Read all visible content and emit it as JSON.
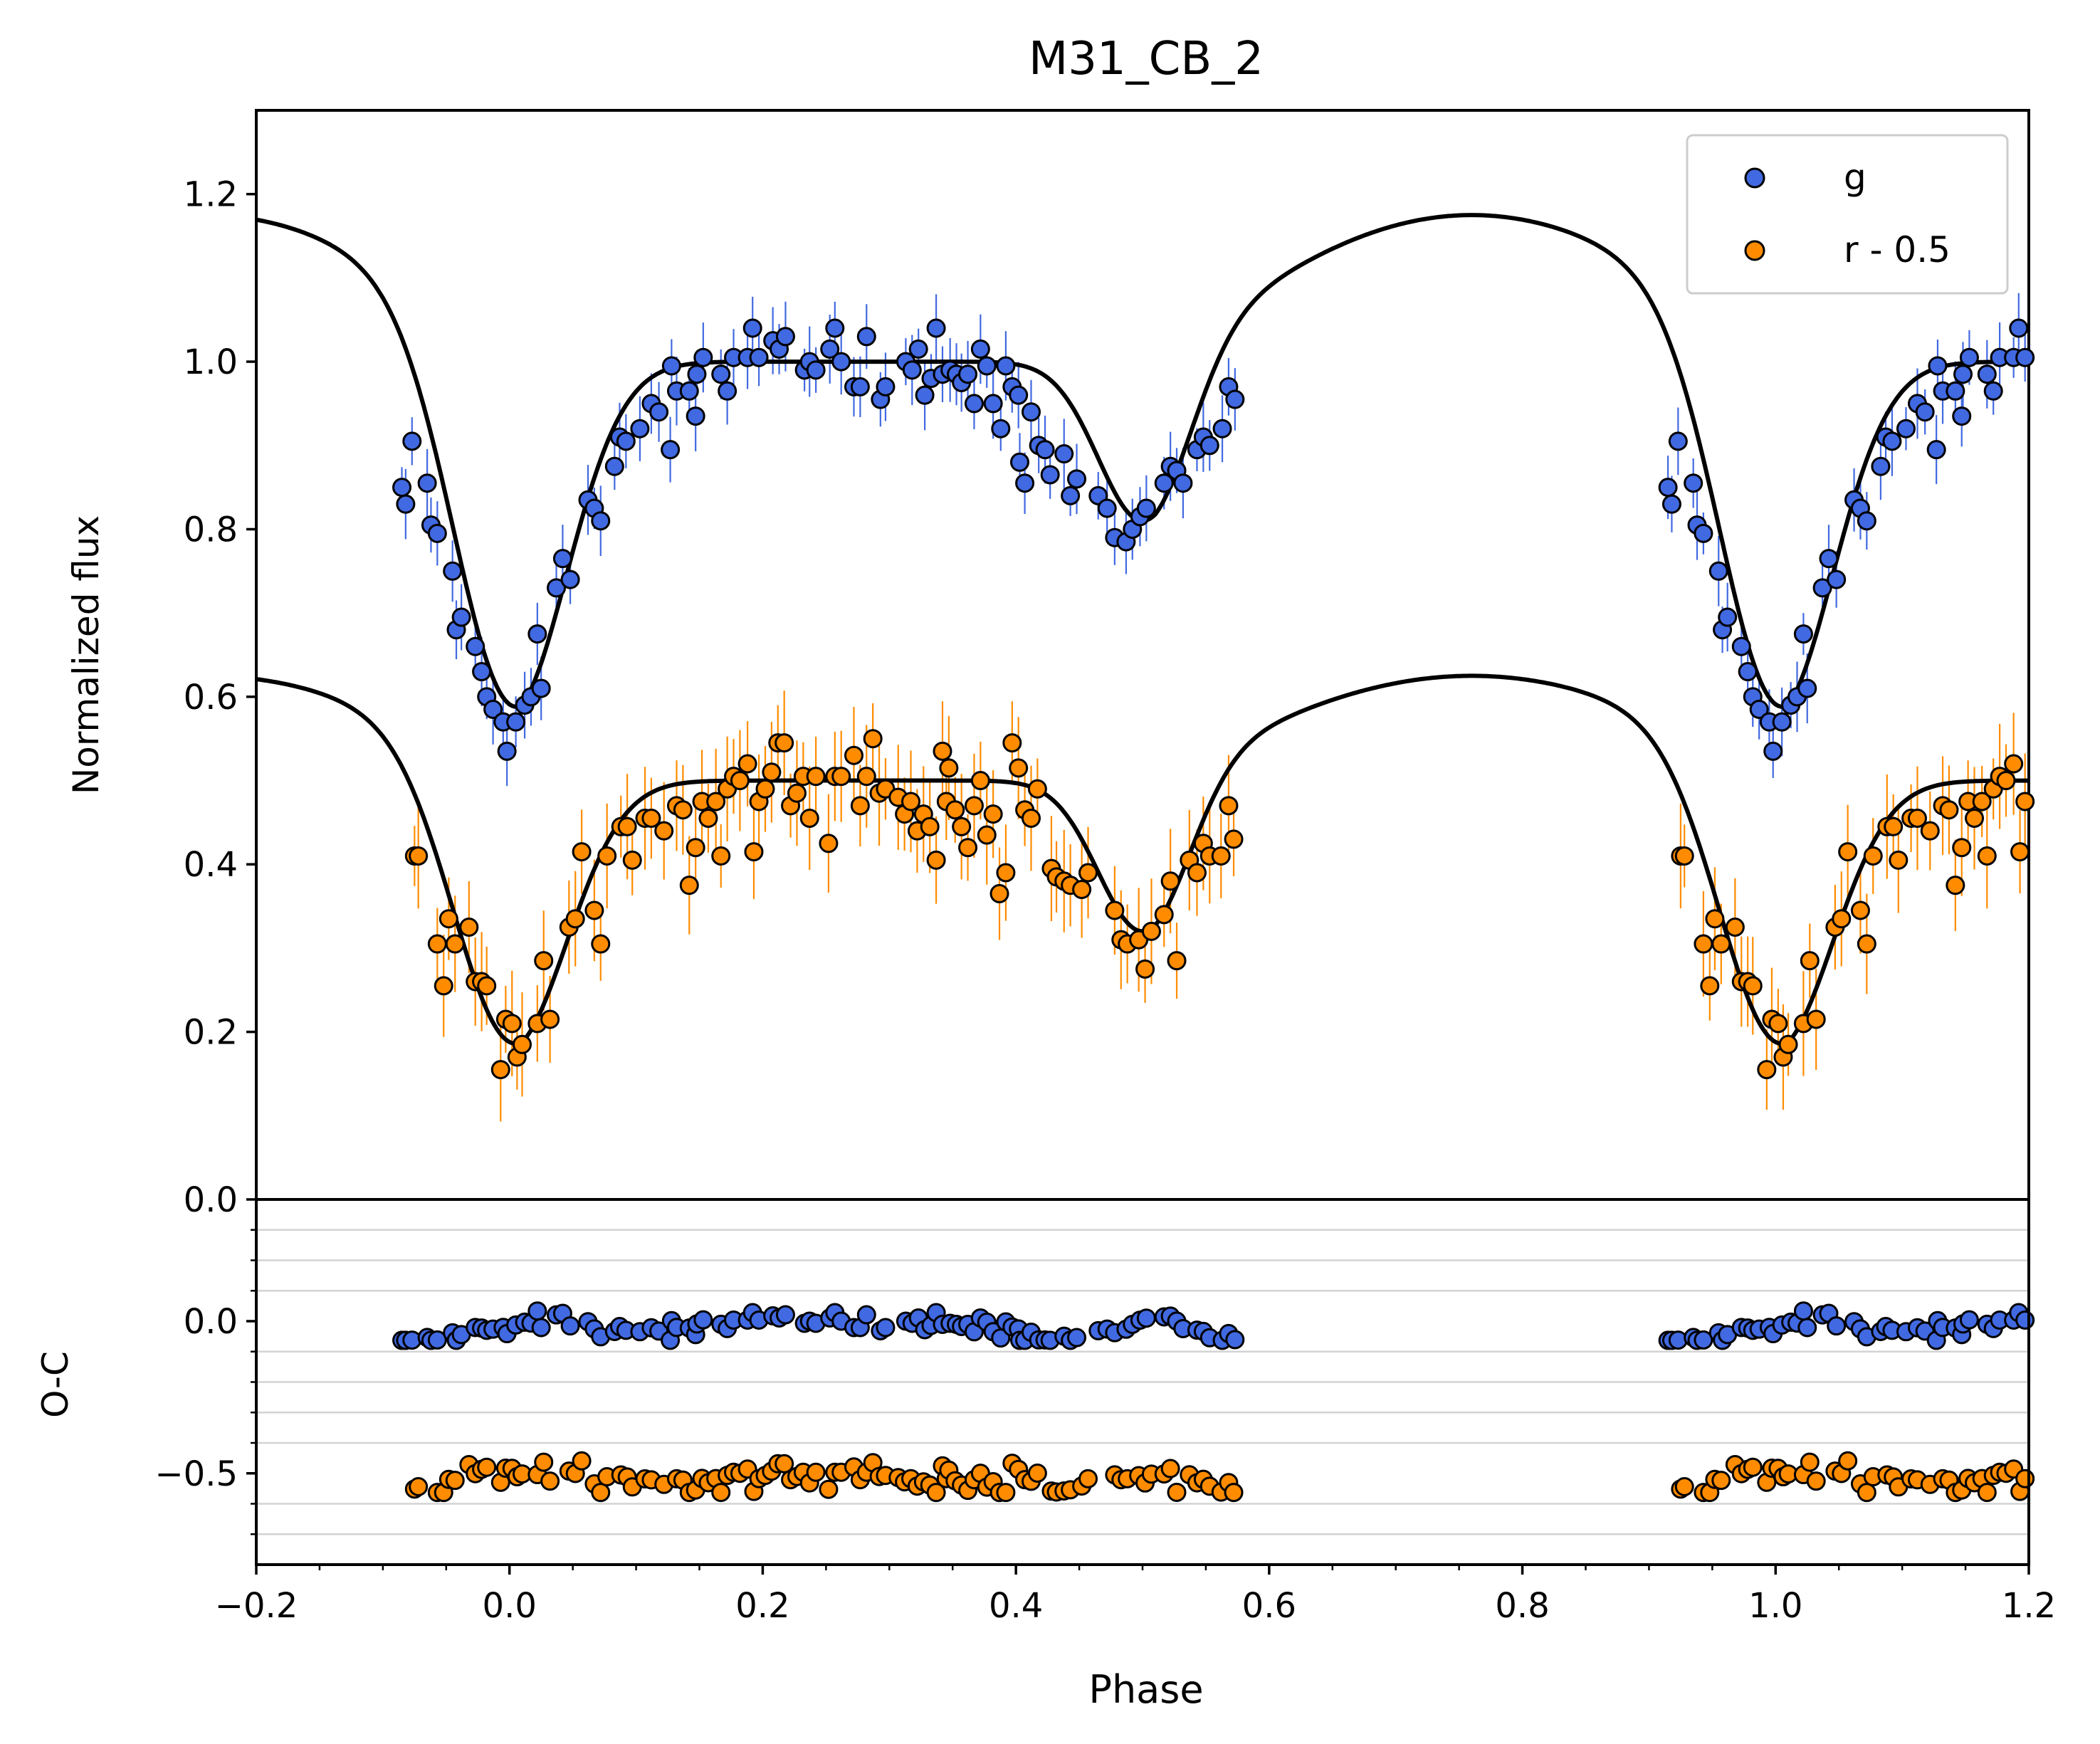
{
  "chart_data": {
    "type": "scatter",
    "title": "M31_CB_2",
    "colors": {
      "g": "#4169e1",
      "r": "#ff8c00",
      "model": "#000000",
      "edge": "#000000",
      "grid": "#d3d3d3"
    },
    "x_ticks": [
      "−0.2",
      "0.0",
      "0.2",
      "0.4",
      "0.6",
      "0.8",
      "1.0",
      "1.2"
    ],
    "x_tick_values": [
      -0.2,
      0.0,
      0.2,
      0.4,
      0.6,
      0.8,
      1.0,
      1.2
    ],
    "legend": {
      "position": "top-right",
      "entries": [
        "g",
        "r - 0.5"
      ]
    },
    "top_panel": {
      "ylabel": "Normalized flux",
      "xlim": [
        -0.2,
        1.2
      ],
      "ylim": [
        0.0,
        1.3
      ],
      "y_ticks": [
        "0.0",
        "0.2",
        "0.4",
        "0.6",
        "0.8",
        "1.0",
        "1.2"
      ],
      "y_tick_values": [
        0.0,
        0.2,
        0.4,
        0.6,
        0.8,
        1.0,
        1.2
      ],
      "series": [
        {
          "name": "g",
          "offset": 0.0,
          "err": 0.03,
          "model": {
            "base": 1.0,
            "primary_depth": 0.42,
            "secondary_depth": 0.19,
            "bump": 0.175
          },
          "points": [
            [
              -0.085,
              0.85
            ],
            [
              -0.082,
              0.83
            ],
            [
              -0.077,
              0.905
            ],
            [
              -0.065,
              0.855
            ],
            [
              -0.062,
              0.805
            ],
            [
              -0.057,
              0.795
            ],
            [
              -0.045,
              0.75
            ],
            [
              -0.042,
              0.68
            ],
            [
              -0.038,
              0.695
            ],
            [
              -0.027,
              0.66
            ],
            [
              -0.022,
              0.63
            ],
            [
              -0.018,
              0.6
            ],
            [
              -0.013,
              0.585
            ],
            [
              -0.005,
              0.57
            ],
            [
              -0.002,
              0.535
            ],
            [
              0.005,
              0.57
            ],
            [
              0.012,
              0.59
            ],
            [
              0.017,
              0.6
            ],
            [
              0.022,
              0.675
            ],
            [
              0.025,
              0.61
            ],
            [
              0.037,
              0.73
            ],
            [
              0.042,
              0.765
            ],
            [
              0.048,
              0.74
            ],
            [
              0.062,
              0.835
            ],
            [
              0.067,
              0.825
            ],
            [
              0.072,
              0.81
            ],
            [
              0.083,
              0.875
            ],
            [
              0.087,
              0.91
            ],
            [
              0.092,
              0.905
            ],
            [
              0.103,
              0.92
            ],
            [
              0.112,
              0.95
            ],
            [
              0.118,
              0.94
            ],
            [
              0.127,
              0.895
            ],
            [
              0.128,
              0.995
            ],
            [
              0.132,
              0.965
            ],
            [
              0.142,
              0.965
            ],
            [
              0.147,
              0.935
            ],
            [
              0.148,
              0.985
            ],
            [
              0.153,
              1.005
            ],
            [
              0.167,
              0.985
            ],
            [
              0.172,
              0.965
            ],
            [
              0.177,
              1.005
            ],
            [
              0.188,
              1.005
            ],
            [
              0.192,
              1.04
            ],
            [
              0.197,
              1.005
            ],
            [
              0.208,
              1.025
            ],
            [
              0.213,
              1.015
            ],
            [
              0.218,
              1.03
            ],
            [
              0.233,
              0.99
            ],
            [
              0.237,
              1.0
            ],
            [
              0.242,
              0.99
            ],
            [
              0.253,
              1.015
            ],
            [
              0.257,
              1.04
            ],
            [
              0.262,
              1.0
            ],
            [
              0.272,
              0.97
            ],
            [
              0.277,
              0.97
            ],
            [
              0.282,
              1.03
            ],
            [
              0.293,
              0.955
            ],
            [
              0.297,
              0.97
            ],
            [
              0.313,
              1.0
            ],
            [
              0.318,
              0.99
            ],
            [
              0.323,
              1.015
            ],
            [
              0.328,
              0.96
            ],
            [
              0.333,
              0.98
            ],
            [
              0.337,
              1.04
            ],
            [
              0.342,
              0.985
            ],
            [
              0.348,
              0.99
            ],
            [
              0.353,
              0.985
            ],
            [
              0.357,
              0.975
            ],
            [
              0.362,
              0.985
            ],
            [
              0.367,
              0.95
            ],
            [
              0.372,
              1.015
            ],
            [
              0.377,
              0.995
            ],
            [
              0.382,
              0.95
            ],
            [
              0.388,
              0.92
            ],
            [
              0.392,
              0.995
            ],
            [
              0.397,
              0.97
            ],
            [
              0.402,
              0.96
            ],
            [
              0.403,
              0.88
            ],
            [
              0.407,
              0.855
            ],
            [
              0.412,
              0.94
            ],
            [
              0.418,
              0.9
            ],
            [
              0.423,
              0.895
            ],
            [
              0.427,
              0.865
            ],
            [
              0.438,
              0.89
            ],
            [
              0.443,
              0.84
            ],
            [
              0.448,
              0.86
            ],
            [
              0.465,
              0.84
            ],
            [
              0.472,
              0.825
            ],
            [
              0.478,
              0.79
            ],
            [
              0.487,
              0.785
            ],
            [
              0.492,
              0.8
            ],
            [
              0.498,
              0.815
            ],
            [
              0.503,
              0.825
            ],
            [
              0.517,
              0.855
            ],
            [
              0.522,
              0.875
            ],
            [
              0.527,
              0.87
            ],
            [
              0.532,
              0.855
            ],
            [
              0.543,
              0.895
            ],
            [
              0.548,
              0.91
            ],
            [
              0.553,
              0.9
            ],
            [
              0.563,
              0.92
            ],
            [
              0.568,
              0.97
            ],
            [
              0.573,
              0.955
            ]
          ]
        },
        {
          "name": "r - 0.5",
          "offset": -0.5,
          "err": 0.045,
          "model": {
            "base": 0.5,
            "primary_depth": 0.32,
            "secondary_depth": 0.18,
            "bump": 0.125
          },
          "points": [
            [
              -0.075,
              0.41
            ],
            [
              -0.072,
              0.41
            ],
            [
              -0.057,
              0.305
            ],
            [
              -0.052,
              0.255
            ],
            [
              -0.048,
              0.335
            ],
            [
              -0.043,
              0.305
            ],
            [
              -0.032,
              0.325
            ],
            [
              -0.027,
              0.26
            ],
            [
              -0.022,
              0.26
            ],
            [
              -0.018,
              0.255
            ],
            [
              -0.007,
              0.155
            ],
            [
              -0.003,
              0.215
            ],
            [
              0.002,
              0.21
            ],
            [
              0.006,
              0.17
            ],
            [
              0.01,
              0.185
            ],
            [
              0.022,
              0.21
            ],
            [
              0.027,
              0.285
            ],
            [
              0.032,
              0.215
            ],
            [
              0.047,
              0.325
            ],
            [
              0.052,
              0.335
            ],
            [
              0.057,
              0.415
            ],
            [
              0.067,
              0.345
            ],
            [
              0.072,
              0.305
            ],
            [
              0.077,
              0.41
            ],
            [
              0.088,
              0.445
            ],
            [
              0.093,
              0.445
            ],
            [
              0.097,
              0.405
            ],
            [
              0.107,
              0.455
            ],
            [
              0.112,
              0.455
            ],
            [
              0.122,
              0.44
            ],
            [
              0.132,
              0.47
            ],
            [
              0.137,
              0.465
            ],
            [
              0.142,
              0.375
            ],
            [
              0.147,
              0.42
            ],
            [
              0.152,
              0.475
            ],
            [
              0.157,
              0.455
            ],
            [
              0.163,
              0.475
            ],
            [
              0.167,
              0.41
            ],
            [
              0.172,
              0.49
            ],
            [
              0.177,
              0.505
            ],
            [
              0.182,
              0.5
            ],
            [
              0.188,
              0.52
            ],
            [
              0.193,
              0.415
            ],
            [
              0.197,
              0.475
            ],
            [
              0.202,
              0.49
            ],
            [
              0.207,
              0.51
            ],
            [
              0.212,
              0.545
            ],
            [
              0.217,
              0.545
            ],
            [
              0.222,
              0.47
            ],
            [
              0.227,
              0.485
            ],
            [
              0.232,
              0.505
            ],
            [
              0.237,
              0.455
            ],
            [
              0.242,
              0.505
            ],
            [
              0.252,
              0.425
            ],
            [
              0.257,
              0.505
            ],
            [
              0.262,
              0.505
            ],
            [
              0.272,
              0.53
            ],
            [
              0.277,
              0.47
            ],
            [
              0.282,
              0.505
            ],
            [
              0.287,
              0.55
            ],
            [
              0.292,
              0.485
            ],
            [
              0.297,
              0.49
            ],
            [
              0.307,
              0.48
            ],
            [
              0.312,
              0.46
            ],
            [
              0.317,
              0.475
            ],
            [
              0.322,
              0.44
            ],
            [
              0.327,
              0.46
            ],
            [
              0.332,
              0.445
            ],
            [
              0.337,
              0.405
            ],
            [
              0.342,
              0.535
            ],
            [
              0.345,
              0.475
            ],
            [
              0.347,
              0.515
            ],
            [
              0.352,
              0.465
            ],
            [
              0.357,
              0.445
            ],
            [
              0.362,
              0.42
            ],
            [
              0.367,
              0.47
            ],
            [
              0.372,
              0.5
            ],
            [
              0.377,
              0.435
            ],
            [
              0.382,
              0.46
            ],
            [
              0.387,
              0.365
            ],
            [
              0.392,
              0.39
            ],
            [
              0.397,
              0.545
            ],
            [
              0.402,
              0.515
            ],
            [
              0.407,
              0.465
            ],
            [
              0.412,
              0.455
            ],
            [
              0.417,
              0.49
            ],
            [
              0.428,
              0.395
            ],
            [
              0.432,
              0.385
            ],
            [
              0.438,
              0.38
            ],
            [
              0.443,
              0.375
            ],
            [
              0.452,
              0.37
            ],
            [
              0.457,
              0.39
            ],
            [
              0.478,
              0.345
            ],
            [
              0.483,
              0.31
            ],
            [
              0.488,
              0.305
            ],
            [
              0.497,
              0.31
            ],
            [
              0.502,
              0.275
            ],
            [
              0.507,
              0.32
            ],
            [
              0.517,
              0.34
            ],
            [
              0.522,
              0.38
            ],
            [
              0.527,
              0.285
            ],
            [
              0.537,
              0.405
            ],
            [
              0.543,
              0.39
            ],
            [
              0.548,
              0.425
            ],
            [
              0.553,
              0.41
            ],
            [
              0.562,
              0.41
            ],
            [
              0.568,
              0.47
            ],
            [
              0.572,
              0.43
            ]
          ]
        }
      ]
    },
    "bottom_panel": {
      "ylabel": "O-C",
      "xlim": [
        -0.2,
        1.2
      ],
      "ylim": [
        -0.8,
        0.4
      ],
      "y_ticks": [
        "0.0",
        "−0.5"
      ],
      "y_tick_values": [
        0.0,
        -0.5
      ],
      "grid_y": [
        0.3,
        0.2,
        0.1,
        -0.1,
        -0.2,
        -0.3,
        -0.4,
        -0.6,
        -0.7
      ]
    }
  }
}
